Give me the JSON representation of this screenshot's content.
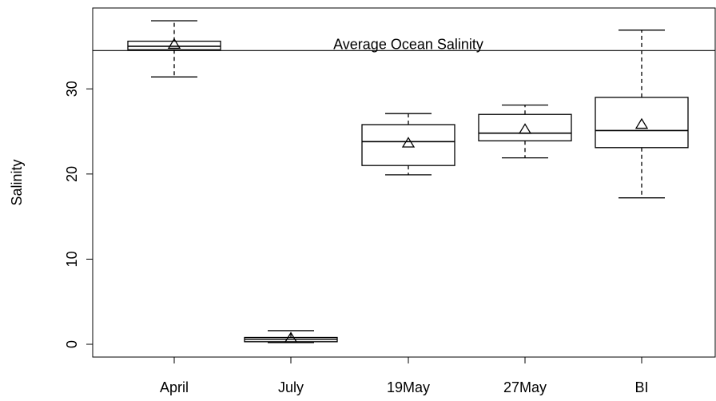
{
  "chart_data": {
    "type": "boxplot",
    "title": "",
    "xlabel": "",
    "ylabel": "Salinity",
    "ylim": [
      -1.5,
      39.5
    ],
    "yticks": [
      0,
      10,
      20,
      30
    ],
    "categories": [
      "April",
      "July",
      "19May",
      "27May",
      "BI"
    ],
    "boxes": [
      {
        "category": "April",
        "whisker_low": 31.4,
        "q1": 34.6,
        "median": 35.0,
        "q3": 35.6,
        "whisker_high": 38.0,
        "mean": 35.2
      },
      {
        "category": "July",
        "whisker_low": 0.2,
        "q1": 0.3,
        "median": 0.6,
        "q3": 0.8,
        "whisker_high": 1.6,
        "mean": 0.7
      },
      {
        "category": "19May",
        "whisker_low": 19.9,
        "q1": 21.0,
        "median": 23.8,
        "q3": 25.8,
        "whisker_high": 27.1,
        "mean": 23.6
      },
      {
        "category": "27May",
        "whisker_low": 21.9,
        "q1": 23.9,
        "median": 24.8,
        "q3": 27.0,
        "whisker_high": 28.1,
        "mean": 25.2
      },
      {
        "category": "BI",
        "whisker_low": 17.2,
        "q1": 23.1,
        "median": 25.1,
        "q3": 29.0,
        "whisker_high": 36.9,
        "mean": 25.8
      }
    ],
    "reference_line": {
      "value": 34.5,
      "label": "Average Ocean Salinity"
    },
    "grid": false,
    "legend": "none"
  }
}
